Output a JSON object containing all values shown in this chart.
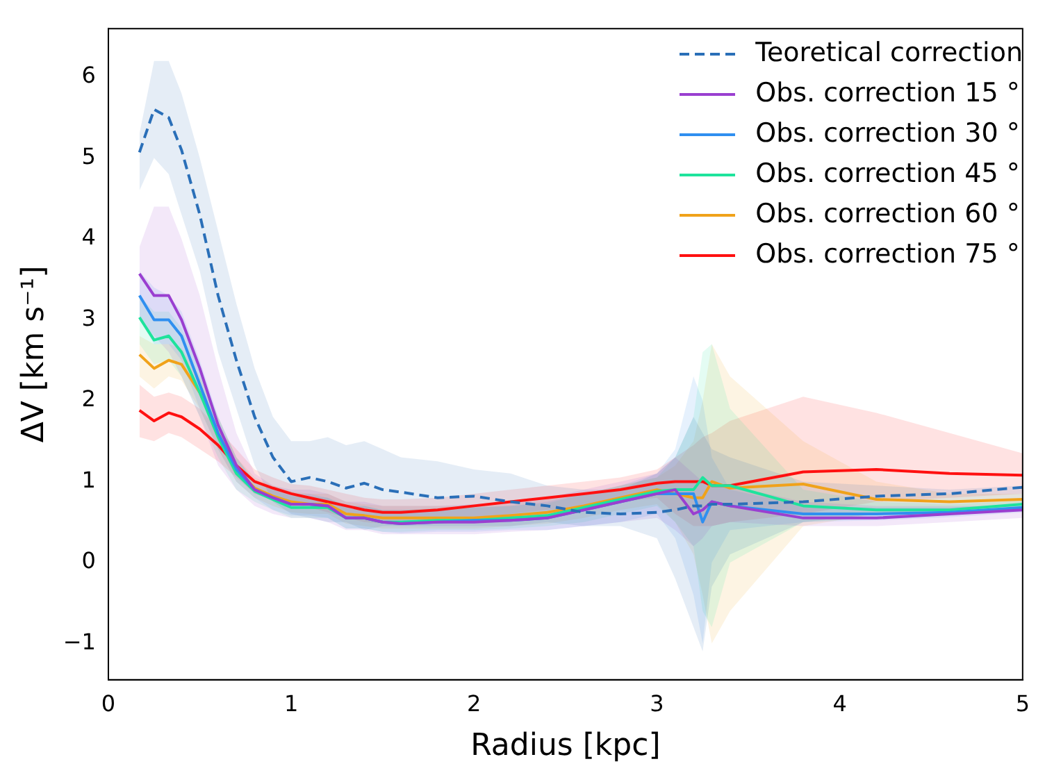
{
  "chart_data": {
    "type": "line",
    "xlabel": "Radius [kpc]",
    "ylabel": "ΔV [km s⁻¹]",
    "xlim": [
      0,
      5
    ],
    "xticks": [
      0,
      1,
      2,
      3,
      4,
      5
    ],
    "ylim": [
      -1.45,
      6.6
    ],
    "yticks": [
      -1,
      0,
      1,
      2,
      3,
      4,
      5,
      6
    ],
    "grid": false,
    "legend": "top right",
    "marker": "none",
    "x": [
      0.17,
      0.25,
      0.33,
      0.4,
      0.5,
      0.6,
      0.7,
      0.8,
      0.9,
      1.0,
      1.1,
      1.2,
      1.3,
      1.4,
      1.5,
      1.6,
      1.8,
      2.0,
      2.2,
      2.4,
      2.6,
      2.8,
      3.0,
      3.1,
      3.2,
      3.25,
      3.3,
      3.4,
      3.8,
      4.2,
      4.6,
      5.0
    ],
    "series": [
      {
        "name": "Teoretical correction",
        "color": "#2a6fb8",
        "line_style": "dashed",
        "values": [
          5.07,
          5.6,
          5.5,
          5.1,
          4.3,
          3.3,
          2.5,
          1.8,
          1.3,
          1.0,
          1.05,
          1.0,
          0.92,
          0.98,
          0.9,
          0.87,
          0.8,
          0.82,
          0.75,
          0.7,
          0.62,
          0.6,
          0.62,
          0.65,
          0.7,
          0.7,
          0.72,
          0.72,
          0.75,
          0.82,
          0.85,
          0.93
        ],
        "upper": [
          5.3,
          6.2,
          6.2,
          5.8,
          5.0,
          4.1,
          3.2,
          2.4,
          1.8,
          1.5,
          1.5,
          1.55,
          1.45,
          1.5,
          1.4,
          1.3,
          1.25,
          1.15,
          1.1,
          0.95,
          0.9,
          0.9,
          1.1,
          1.3,
          1.8,
          1.6,
          1.4,
          1.3,
          1.0,
          0.95,
          0.9,
          0.95
        ],
        "lower": [
          4.6,
          5.0,
          4.8,
          4.3,
          3.6,
          2.6,
          1.9,
          1.2,
          0.75,
          0.6,
          0.55,
          0.5,
          0.5,
          0.4,
          0.45,
          0.45,
          0.45,
          0.45,
          0.45,
          0.5,
          0.45,
          0.45,
          0.3,
          -0.2,
          -0.8,
          -1.1,
          -0.3,
          0.1,
          0.5,
          0.6,
          0.65,
          0.7
        ]
      },
      {
        "name": "Obs. correction 15 °",
        "color": "#9a3fd0",
        "line_style": "solid",
        "values": [
          3.57,
          3.3,
          3.3,
          3.0,
          2.4,
          1.7,
          1.2,
          0.9,
          0.8,
          0.72,
          0.72,
          0.7,
          0.55,
          0.55,
          0.5,
          0.48,
          0.5,
          0.5,
          0.52,
          0.55,
          0.65,
          0.75,
          0.85,
          0.9,
          0.6,
          0.65,
          0.75,
          0.7,
          0.55,
          0.55,
          0.6,
          0.65
        ],
        "upper": [
          3.9,
          4.4,
          4.4,
          4.0,
          3.3,
          2.4,
          1.6,
          1.1,
          0.95,
          0.9,
          0.9,
          0.85,
          0.75,
          0.75,
          0.7,
          0.7,
          0.7,
          0.72,
          0.75,
          0.8,
          0.9,
          1.0,
          1.1,
          1.3,
          1.1,
          1.0,
          1.0,
          0.95,
          0.75,
          0.7,
          0.7,
          0.7
        ],
        "lower": [
          3.0,
          2.8,
          2.6,
          2.3,
          1.8,
          1.2,
          0.9,
          0.7,
          0.6,
          0.55,
          0.55,
          0.5,
          0.4,
          0.4,
          0.35,
          0.35,
          0.35,
          0.35,
          0.38,
          0.4,
          0.45,
          0.5,
          0.55,
          0.4,
          0.2,
          0.3,
          0.45,
          0.5,
          0.45,
          0.45,
          0.5,
          0.55
        ]
      },
      {
        "name": "Obs. correction 30 °",
        "color": "#2f8ff0",
        "line_style": "solid",
        "values": [
          3.3,
          3.0,
          3.0,
          2.8,
          2.2,
          1.6,
          1.15,
          0.9,
          0.8,
          0.72,
          0.72,
          0.7,
          0.55,
          0.55,
          0.5,
          0.48,
          0.5,
          0.52,
          0.52,
          0.55,
          0.65,
          0.75,
          0.85,
          0.85,
          0.85,
          0.5,
          0.75,
          0.7,
          0.6,
          0.6,
          0.62,
          0.68
        ],
        "upper": [
          3.6,
          3.4,
          3.3,
          3.1,
          2.5,
          1.8,
          1.3,
          1.0,
          0.9,
          0.85,
          0.85,
          0.8,
          0.7,
          0.7,
          0.65,
          0.65,
          0.65,
          0.68,
          0.7,
          0.75,
          0.85,
          0.95,
          1.1,
          1.4,
          2.3,
          2.0,
          1.3,
          0.9,
          0.7,
          0.68,
          0.68,
          0.72
        ],
        "lower": [
          3.0,
          2.7,
          2.7,
          2.5,
          1.9,
          1.4,
          1.0,
          0.8,
          0.65,
          0.58,
          0.58,
          0.55,
          0.42,
          0.42,
          0.38,
          0.36,
          0.38,
          0.38,
          0.4,
          0.4,
          0.45,
          0.5,
          0.6,
          0.3,
          -0.4,
          -1.0,
          0.0,
          0.4,
          0.5,
          0.52,
          0.56,
          0.62
        ]
      },
      {
        "name": "Obs. correction 45 °",
        "color": "#1ee39c",
        "line_style": "solid",
        "values": [
          3.03,
          2.75,
          2.8,
          2.6,
          2.1,
          1.55,
          1.1,
          0.88,
          0.78,
          0.68,
          0.68,
          0.68,
          0.55,
          0.55,
          0.5,
          0.5,
          0.52,
          0.52,
          0.55,
          0.58,
          0.68,
          0.78,
          0.88,
          0.9,
          0.9,
          1.05,
          0.95,
          0.95,
          0.7,
          0.65,
          0.65,
          0.72
        ],
        "upper": [
          3.3,
          3.1,
          3.1,
          2.9,
          2.4,
          1.8,
          1.3,
          1.0,
          0.9,
          0.82,
          0.82,
          0.8,
          0.7,
          0.7,
          0.65,
          0.65,
          0.67,
          0.68,
          0.7,
          0.73,
          0.85,
          0.95,
          1.05,
          1.3,
          1.8,
          2.6,
          2.7,
          1.9,
          0.9,
          0.75,
          0.72,
          0.76
        ],
        "lower": [
          2.7,
          2.45,
          2.5,
          2.3,
          1.8,
          1.3,
          0.9,
          0.75,
          0.65,
          0.55,
          0.55,
          0.55,
          0.42,
          0.42,
          0.38,
          0.38,
          0.4,
          0.4,
          0.42,
          0.45,
          0.5,
          0.6,
          0.7,
          0.5,
          0.2,
          -0.6,
          -0.8,
          0.0,
          0.5,
          0.55,
          0.58,
          0.65
        ]
      },
      {
        "name": "Obs. correction 60 °",
        "color": "#f0a21a",
        "line_style": "solid",
        "values": [
          2.57,
          2.4,
          2.5,
          2.45,
          2.1,
          1.6,
          1.15,
          0.92,
          0.82,
          0.75,
          0.72,
          0.72,
          0.6,
          0.58,
          0.55,
          0.55,
          0.55,
          0.55,
          0.58,
          0.62,
          0.7,
          0.8,
          0.9,
          0.85,
          0.8,
          0.8,
          1.0,
          0.92,
          0.97,
          0.78,
          0.75,
          0.78
        ],
        "upper": [
          2.8,
          2.7,
          2.7,
          2.65,
          2.3,
          1.8,
          1.3,
          1.05,
          0.95,
          0.88,
          0.85,
          0.85,
          0.75,
          0.72,
          0.7,
          0.7,
          0.7,
          0.7,
          0.72,
          0.78,
          0.85,
          0.95,
          1.05,
          1.2,
          1.5,
          2.0,
          2.7,
          2.3,
          1.5,
          1.0,
          0.85,
          0.85
        ],
        "lower": [
          2.3,
          2.15,
          2.3,
          2.25,
          1.9,
          1.4,
          1.0,
          0.8,
          0.7,
          0.62,
          0.6,
          0.6,
          0.48,
          0.45,
          0.42,
          0.42,
          0.42,
          0.42,
          0.45,
          0.48,
          0.55,
          0.65,
          0.72,
          0.5,
          0.1,
          -0.4,
          -1.0,
          -0.6,
          0.45,
          0.6,
          0.65,
          0.7
        ]
      },
      {
        "name": "Obs. correction 75 °",
        "color": "#ff1010",
        "line_style": "solid",
        "values": [
          1.88,
          1.75,
          1.85,
          1.8,
          1.65,
          1.45,
          1.2,
          1.0,
          0.92,
          0.85,
          0.8,
          0.75,
          0.7,
          0.65,
          0.62,
          0.62,
          0.65,
          0.7,
          0.75,
          0.8,
          0.85,
          0.9,
          0.98,
          1.0,
          1.0,
          1.0,
          0.95,
          0.95,
          1.12,
          1.15,
          1.1,
          1.08
        ],
        "upper": [
          2.2,
          2.05,
          2.1,
          2.05,
          1.9,
          1.65,
          1.4,
          1.15,
          1.05,
          0.97,
          0.95,
          0.9,
          0.85,
          0.8,
          0.78,
          0.78,
          0.8,
          0.85,
          0.9,
          0.95,
          1.0,
          1.05,
          1.15,
          1.3,
          1.45,
          1.55,
          1.6,
          1.75,
          2.05,
          1.85,
          1.6,
          1.35
        ],
        "lower": [
          1.55,
          1.5,
          1.6,
          1.55,
          1.4,
          1.25,
          1.05,
          0.85,
          0.78,
          0.72,
          0.68,
          0.62,
          0.55,
          0.5,
          0.48,
          0.48,
          0.5,
          0.55,
          0.6,
          0.65,
          0.7,
          0.75,
          0.8,
          0.6,
          0.45,
          0.45,
          0.45,
          0.5,
          0.6,
          0.75,
          0.8,
          0.85
        ]
      }
    ]
  }
}
